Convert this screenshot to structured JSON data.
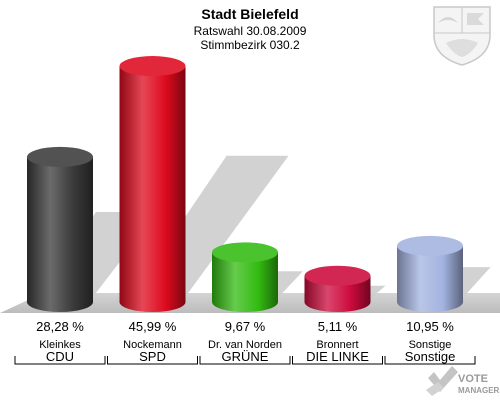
{
  "header": {
    "title": "Stadt Bielefeld",
    "subtitle1": "Ratswahl 30.08.2009",
    "subtitle2": "Stimmbezirk 030.2"
  },
  "chart_data": {
    "type": "bar",
    "title": "Stadt Bielefeld",
    "subtitle": "Ratswahl 30.08.2009 / Stimmbezirk 030.2",
    "ylim": [
      0,
      46
    ],
    "grid": false,
    "categories": [
      "CDU",
      "SPD",
      "GRÜNE",
      "DIE LINKE",
      "Sonstige"
    ],
    "candidates": [
      "Kleinkes",
      "Nockemann",
      "Dr. van Norden",
      "Bronnert",
      "Sonstige"
    ],
    "values": [
      28.28,
      45.99,
      9.67,
      5.11,
      10.95
    ],
    "value_labels": [
      "28,28 %",
      "45,99 %",
      "9,67 %",
      "5,11 %",
      "10,95 %"
    ],
    "colors": [
      "#3a3a3a",
      "#dd0a1e",
      "#33bb11",
      "#cc0a3c",
      "#a3b3e0"
    ]
  },
  "footer": {
    "logo_text_1": "VOTE",
    "logo_text_2": "MANAGER"
  },
  "icons": {
    "coat_of_arms": "nrw-coat-of-arms-icon",
    "logo": "vote-manager-logo-icon"
  }
}
